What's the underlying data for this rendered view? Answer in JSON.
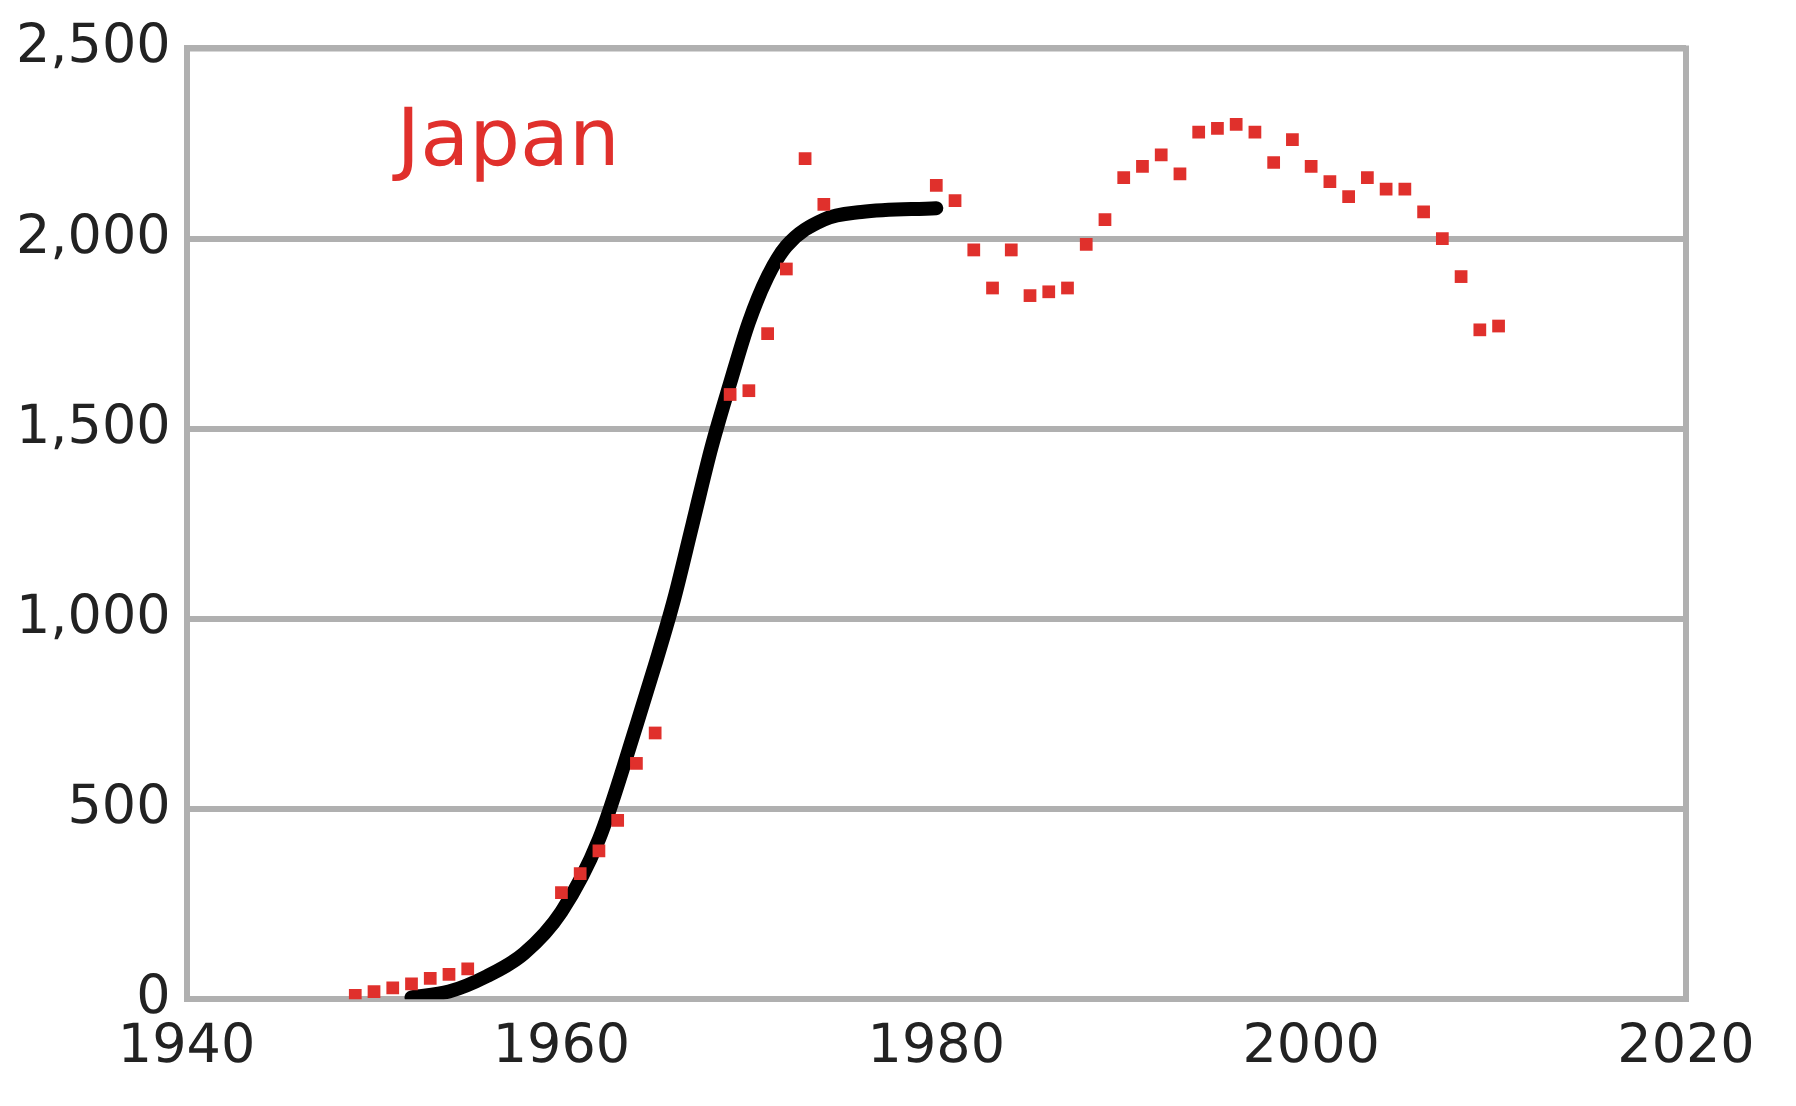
{
  "chart_data": {
    "type": "scatter",
    "annotations": [
      "Japan"
    ],
    "xlim": [
      1940,
      2020
    ],
    "xticks": [
      1940,
      1960,
      1980,
      2000,
      2020
    ],
    "ylim": [
      0,
      2500
    ],
    "yticks": [
      0,
      {
        "value": 500,
        "label": "500"
      },
      {
        "value": 1000,
        "label": "1,000"
      },
      {
        "value": 1500,
        "label": "1,500"
      },
      {
        "value": 2000,
        "label": "2,000"
      },
      {
        "value": 2500,
        "label": "2,500"
      }
    ],
    "grid": "y",
    "legend": false,
    "marker": "square",
    "series": [
      {
        "color": "#e0302c",
        "x": [
          1949,
          1950,
          1951,
          1952,
          1953,
          1954,
          1955,
          1960,
          1961,
          1962,
          1963,
          1964,
          1965,
          1969,
          1970,
          1971,
          1972,
          1973,
          1974,
          1980,
          1981,
          1982,
          1983,
          1984,
          1985,
          1986,
          1987,
          1988,
          1989,
          1990,
          1991,
          1992,
          1993,
          1994,
          1995,
          1996,
          1997,
          1998,
          1999,
          2000,
          2001,
          2002,
          2003,
          2004,
          2005,
          2006,
          2007,
          2008,
          2009,
          2010
        ],
        "values": [
          10,
          20,
          30,
          40,
          55,
          65,
          80,
          280,
          330,
          390,
          470,
          620,
          700,
          1590,
          1600,
          1750,
          1920,
          2210,
          2090,
          2140,
          2100,
          1970,
          1870,
          1970,
          1850,
          1860,
          1870,
          1985,
          2050,
          2160,
          2190,
          2220,
          2170,
          2280,
          2290,
          2300,
          2280,
          2200,
          2260,
          2190,
          2150,
          2110,
          2160,
          2130,
          2130,
          2070,
          2000,
          1900,
          1760,
          1770
        ]
      },
      {
        "type": "line",
        "color": "#000000",
        "marker": "none",
        "line_style": "solid",
        "x": [
          1952,
          1954,
          1956,
          1958,
          1960,
          1962,
          1964,
          1965,
          1966,
          1967,
          1968,
          1969,
          1970,
          1971,
          1972,
          1974,
          1976,
          1980
        ],
        "values": [
          5,
          20,
          60,
          120,
          230,
          420,
          720,
          880,
          1050,
          1250,
          1450,
          1620,
          1780,
          1900,
          1980,
          2050,
          2070,
          2080
        ]
      }
    ]
  }
}
